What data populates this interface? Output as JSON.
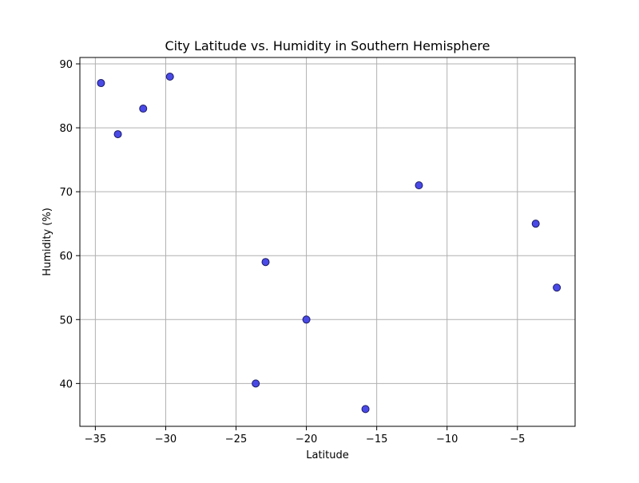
{
  "chart_data": {
    "type": "scatter",
    "title": "City Latitude vs. Humidity in Southern Hemisphere",
    "xlabel": "Latitude",
    "ylabel": "Humidity (%)",
    "xlim": [
      -36.1,
      -0.9
    ],
    "ylim": [
      33.3,
      91.0
    ],
    "xticks": [
      -35,
      -30,
      -25,
      -20,
      -15,
      -10,
      -5
    ],
    "yticks": [
      40,
      50,
      60,
      70,
      80,
      90
    ],
    "grid": true,
    "legend": "none",
    "colors": {
      "marker_fill": "#4040e6",
      "marker_edge": "#1a1a66",
      "grid": "#b0b0b0",
      "axis": "#000000"
    },
    "x": [
      -34.6,
      -33.4,
      -31.6,
      -29.7,
      -23.6,
      -22.9,
      -20.0,
      -15.8,
      -12.0,
      -3.7,
      -2.2
    ],
    "y": [
      87,
      79,
      83,
      88,
      40,
      59,
      50,
      36,
      71,
      65,
      55
    ]
  }
}
